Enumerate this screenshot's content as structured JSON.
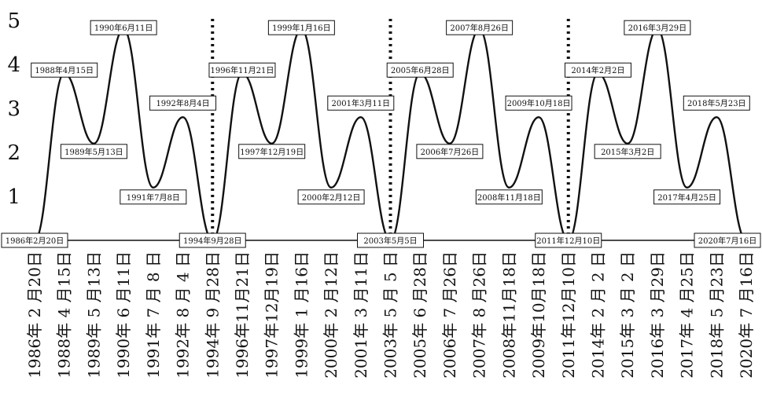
{
  "chart_data": {
    "type": "line",
    "ylim": [
      0,
      5
    ],
    "y_ticks": [
      "1",
      "2",
      "3",
      "4",
      "5"
    ],
    "grid": false,
    "categories": [
      "1986年2月20日",
      "1988年4月15日",
      "1989年5月13日",
      "1990年6月11日",
      "1991年7月8日",
      "1992年8月4日",
      "1994年9月28日",
      "1996年11月21日",
      "1997年12月19日",
      "1999年1月16日",
      "2000年2月12日",
      "2001年3月11日",
      "2003年5月5日",
      "2005年6月28日",
      "2006年7月26日",
      "2007年8月26日",
      "2008年11月18日",
      "2009年10月18日",
      "2011年12月10日",
      "2014年2月2日",
      "2015年3月2日",
      "2016年3月29日",
      "2017年4月25日",
      "2018年5月23日",
      "2020年7月16日"
    ],
    "category_labels": [
      "1986年 2 月20日",
      "1988年 4 月15日",
      "1989年 5 月13日",
      "1990年 6 月11日",
      "1991年 7 月 8 日",
      "1992年 8 月 4 日",
      "1994年 9 月28日",
      "1996年11月21日",
      "1997年12月19日",
      "1999年 1 月16日",
      "2000年 2 月12日",
      "2001年 3 月11日",
      "2003年 5 月 5 日",
      "2005年 6 月28日",
      "2006年 7 月26日",
      "2007年 8 月26日",
      "2008年11月18日",
      "2009年10月18日",
      "2011年12月10日",
      "2014年 2 月 2 日",
      "2015年 3 月 2 日",
      "2016年 3 月29日",
      "2017年 4 月25日",
      "2018年 5 月23日",
      "2020年 7 月16日"
    ],
    "values": [
      0,
      3.8,
      2.2,
      4.8,
      1.2,
      2.8,
      0,
      3.8,
      2.2,
      4.8,
      1.2,
      2.8,
      0,
      3.8,
      2.2,
      4.8,
      1.2,
      2.8,
      0,
      3.8,
      2.2,
      4.8,
      1.2,
      2.8,
      0
    ],
    "dotted_dividers_at": [
      "1994年9月28日",
      "2003年5月5日",
      "2011年12月10日"
    ],
    "line_color": "#111111"
  }
}
